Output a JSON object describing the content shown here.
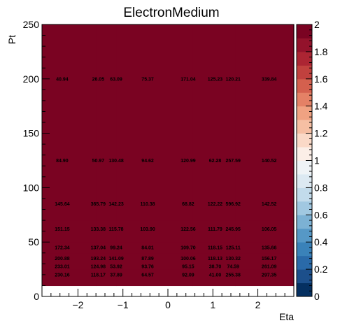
{
  "chart_data": {
    "type": "heatmap",
    "title": "ElectronMedium",
    "xlabel": "Eta",
    "ylabel": "Pt",
    "xlim": [
      -2.8,
      2.8
    ],
    "ylim": [
      0,
      250
    ],
    "x_ticks": [
      "−2",
      "−1",
      "0",
      "1",
      "2"
    ],
    "x_tick_values": [
      -2,
      -1,
      0,
      1,
      2
    ],
    "y_ticks": [
      "0",
      "50",
      "100",
      "150",
      "200",
      "250"
    ],
    "y_tick_values": [
      0,
      50,
      100,
      150,
      200,
      250
    ],
    "x_bin_edges": [
      -2.8,
      -2.2,
      -1.6,
      -1.15,
      -0.55,
      0,
      0.55,
      1.05,
      1.5,
      2.05,
      2.8
    ],
    "y_bin_edges": [
      10,
      15,
      20,
      25,
      30,
      40,
      50,
      70,
      100,
      150,
      250
    ],
    "fill_value": 2,
    "colorbar": {
      "min": 0,
      "max": 2,
      "ticks": [
        "0",
        "0.2",
        "0.4",
        "0.6",
        "0.8",
        "1",
        "1.2",
        "1.4",
        "1.6",
        "1.8",
        "2"
      ],
      "tick_values": [
        0,
        0.2,
        0.4,
        0.6,
        0.8,
        1.0,
        1.2,
        1.4,
        1.6,
        1.8,
        2.0
      ]
    },
    "cell_labels": [
      {
        "x": -2.35,
        "y": 200,
        "text": "40.94"
      },
      {
        "x": -1.55,
        "y": 200,
        "text": "26.05"
      },
      {
        "x": -1.15,
        "y": 200,
        "text": "63.09"
      },
      {
        "x": -0.45,
        "y": 200,
        "text": "75.37"
      },
      {
        "x": 0.45,
        "y": 200,
        "text": "171.04"
      },
      {
        "x": 1.05,
        "y": 200,
        "text": "125.23"
      },
      {
        "x": 1.45,
        "y": 200,
        "text": "120.21"
      },
      {
        "x": 2.25,
        "y": 200,
        "text": "339.84"
      },
      {
        "x": -2.35,
        "y": 125,
        "text": "84.90"
      },
      {
        "x": -1.55,
        "y": 125,
        "text": "50.97"
      },
      {
        "x": -1.15,
        "y": 125,
        "text": "130.48"
      },
      {
        "x": -0.45,
        "y": 125,
        "text": "94.62"
      },
      {
        "x": 0.45,
        "y": 125,
        "text": "120.99"
      },
      {
        "x": 1.05,
        "y": 125,
        "text": "62.28"
      },
      {
        "x": 1.45,
        "y": 125,
        "text": "257.59"
      },
      {
        "x": 2.25,
        "y": 125,
        "text": "140.52"
      },
      {
        "x": -2.35,
        "y": 85,
        "text": "145.64"
      },
      {
        "x": -1.55,
        "y": 85,
        "text": "365.79"
      },
      {
        "x": -1.15,
        "y": 85,
        "text": "142.23"
      },
      {
        "x": -0.45,
        "y": 85,
        "text": "110.38"
      },
      {
        "x": 0.45,
        "y": 85,
        "text": "68.82"
      },
      {
        "x": 1.05,
        "y": 85,
        "text": "122.22"
      },
      {
        "x": 1.45,
        "y": 85,
        "text": "596.92"
      },
      {
        "x": 2.25,
        "y": 85,
        "text": "142.52"
      },
      {
        "x": -2.35,
        "y": 62,
        "text": "151.15"
      },
      {
        "x": -1.55,
        "y": 62,
        "text": "133.38"
      },
      {
        "x": -1.15,
        "y": 62,
        "text": "115.78"
      },
      {
        "x": -0.45,
        "y": 62,
        "text": "103.90"
      },
      {
        "x": 0.45,
        "y": 62,
        "text": "122.56"
      },
      {
        "x": 1.05,
        "y": 62,
        "text": "111.79"
      },
      {
        "x": 1.45,
        "y": 62,
        "text": "245.95"
      },
      {
        "x": 2.25,
        "y": 62,
        "text": "106.05"
      },
      {
        "x": -2.35,
        "y": 45,
        "text": "172.34"
      },
      {
        "x": -1.55,
        "y": 45,
        "text": "137.04"
      },
      {
        "x": -1.15,
        "y": 45,
        "text": "99.24"
      },
      {
        "x": -0.45,
        "y": 45,
        "text": "84.01"
      },
      {
        "x": 0.45,
        "y": 45,
        "text": "109.70"
      },
      {
        "x": 1.05,
        "y": 45,
        "text": "118.15"
      },
      {
        "x": 1.45,
        "y": 45,
        "text": "125.11"
      },
      {
        "x": 2.25,
        "y": 45,
        "text": "135.66"
      },
      {
        "x": -2.35,
        "y": 35,
        "text": "200.88"
      },
      {
        "x": -1.55,
        "y": 35,
        "text": "193.24"
      },
      {
        "x": -1.15,
        "y": 35,
        "text": "141.09"
      },
      {
        "x": -0.45,
        "y": 35,
        "text": "87.89"
      },
      {
        "x": 0.45,
        "y": 35,
        "text": "100.06"
      },
      {
        "x": 1.05,
        "y": 35,
        "text": "118.13"
      },
      {
        "x": 1.45,
        "y": 35,
        "text": "130.32"
      },
      {
        "x": 2.25,
        "y": 35,
        "text": "156.17"
      },
      {
        "x": -2.35,
        "y": 27.5,
        "text": "233.01"
      },
      {
        "x": -1.55,
        "y": 27.5,
        "text": "124.98"
      },
      {
        "x": -1.15,
        "y": 27.5,
        "text": "53.92"
      },
      {
        "x": -0.45,
        "y": 27.5,
        "text": "93.76"
      },
      {
        "x": 0.45,
        "y": 27.5,
        "text": "95.15"
      },
      {
        "x": 1.05,
        "y": 27.5,
        "text": "38.70"
      },
      {
        "x": 1.45,
        "y": 27.5,
        "text": "74.59"
      },
      {
        "x": 2.25,
        "y": 27.5,
        "text": "261.09"
      },
      {
        "x": -2.35,
        "y": 20,
        "text": "230.16"
      },
      {
        "x": -1.55,
        "y": 20,
        "text": "118.17"
      },
      {
        "x": -1.15,
        "y": 20,
        "text": "37.89"
      },
      {
        "x": -0.45,
        "y": 20,
        "text": "64.57"
      },
      {
        "x": 0.45,
        "y": 20,
        "text": "92.09"
      },
      {
        "x": 1.05,
        "y": 20,
        "text": "41.00"
      },
      {
        "x": 1.45,
        "y": 20,
        "text": "255.38"
      },
      {
        "x": 2.25,
        "y": 20,
        "text": "297.35"
      }
    ]
  }
}
